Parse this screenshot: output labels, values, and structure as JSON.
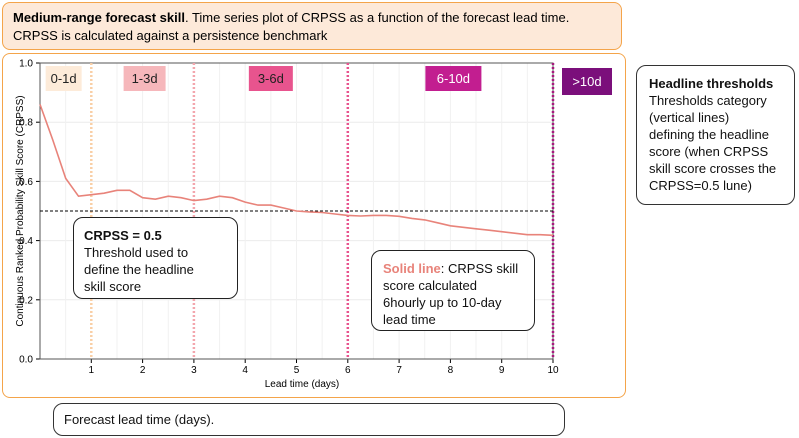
{
  "header": {
    "title_bold": "Medium-range forecast skill",
    "title_rest": ". Time series plot of CRPSS as a function of the forecast lead time.",
    "title_line2": "CRPSS is calculated against a persistence benchmark"
  },
  "chart_data": {
    "type": "line",
    "xlabel": "Lead time (days)",
    "ylabel": "Continuous Ranked Probability Skill Score (CRPSS)",
    "xlim": [
      0,
      10
    ],
    "ylim": [
      0.0,
      1.0
    ],
    "xticks": [
      "1",
      "2",
      "3",
      "4",
      "5",
      "6",
      "7",
      "8",
      "9",
      "10"
    ],
    "yticks": [
      "0.0",
      "0.2",
      "0.4",
      "0.6",
      "0.8",
      "1.0"
    ],
    "grid": true,
    "threshold_value": 0.5,
    "threshold_lines": [
      1,
      3,
      6,
      10
    ],
    "categories": [
      {
        "label": "0-1d",
        "color": "#fdebd9",
        "text_color": "#222222"
      },
      {
        "label": "1-3d",
        "color": "#f6b7bb",
        "text_color": "#222222"
      },
      {
        "label": "3-6d",
        "color": "#e8548e",
        "text_color": "#222222"
      },
      {
        "label": "6-10d",
        "color": "#c21e90",
        "text_color": "#ffffff"
      },
      {
        "label": ">10d",
        "color": "#7b0f7b",
        "text_color": "#ffffff"
      }
    ],
    "series": [
      {
        "color": "#e8837a",
        "x": [
          0,
          0.25,
          0.5,
          0.75,
          1.0,
          1.25,
          1.5,
          1.75,
          2.0,
          2.25,
          2.5,
          2.75,
          3.0,
          3.25,
          3.5,
          3.75,
          4.0,
          4.25,
          4.5,
          4.75,
          5.0,
          5.25,
          5.5,
          5.75,
          6.0,
          6.25,
          6.5,
          6.75,
          7.0,
          7.25,
          7.5,
          7.75,
          8.0,
          8.25,
          8.5,
          8.75,
          9.0,
          9.25,
          9.5,
          9.75,
          10.0
        ],
        "values": [
          0.86,
          0.74,
          0.61,
          0.55,
          0.555,
          0.56,
          0.57,
          0.57,
          0.545,
          0.54,
          0.55,
          0.545,
          0.535,
          0.54,
          0.55,
          0.545,
          0.53,
          0.52,
          0.52,
          0.51,
          0.5,
          0.497,
          0.495,
          0.49,
          0.485,
          0.483,
          0.485,
          0.485,
          0.482,
          0.475,
          0.47,
          0.46,
          0.45,
          0.445,
          0.44,
          0.435,
          0.43,
          0.425,
          0.42,
          0.42,
          0.418
        ]
      }
    ]
  },
  "callouts": {
    "threshold": {
      "title": "CRPSS = 0.5",
      "line1": "Threshold used to",
      "line2": "define the headline",
      "line3": "skill score"
    },
    "solid_line": {
      "label": "Solid line",
      "text1": ": CRPSS skill",
      "line2": "score calculated",
      "line3": "6hourly up to 10-day",
      "line4": "lead time"
    },
    "headline": {
      "title": "Headline thresholds",
      "line1": "Thresholds category",
      "line2": "(vertical lines)",
      "line3": "defining the headline",
      "line4": "score (when CRPSS",
      "line5": "skill score crosses the",
      "line6": "CRPSS=0.5 lune)"
    },
    "xlabel_note": "Forecast lead time (days)."
  }
}
